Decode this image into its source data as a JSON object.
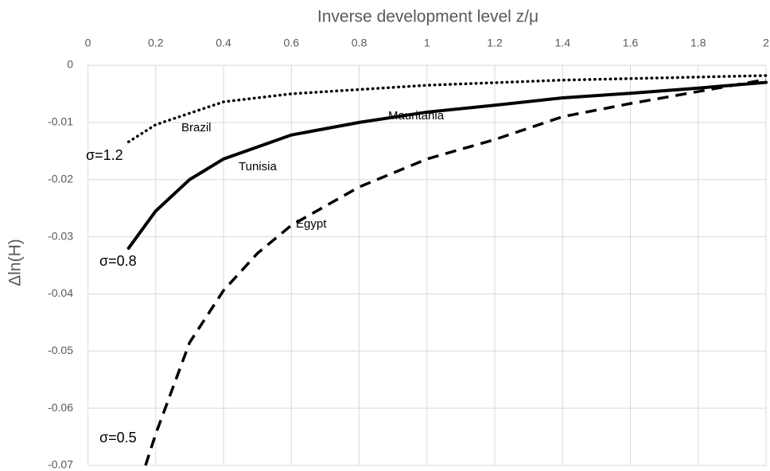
{
  "chart_data": {
    "type": "line",
    "x_axis_label": "Inverse development level z/μ",
    "y_axis_label": "Δln(H)",
    "xlim": [
      0,
      2
    ],
    "xticks": [
      0,
      0.2,
      0.4,
      0.6,
      0.8,
      1,
      1.2,
      1.4,
      1.6,
      1.8,
      2
    ],
    "ylim": [
      -0.07,
      0
    ],
    "yticks": [
      0,
      -0.01,
      -0.02,
      -0.03,
      -0.04,
      -0.05,
      -0.06,
      -0.07
    ],
    "grid": true,
    "series": [
      {
        "name": "σ=1.2",
        "color": "#000000",
        "style": "dotted",
        "x": [
          0.12,
          0.2,
          0.4,
          0.6,
          1.0,
          1.4,
          2.0
        ],
        "values": [
          -0.0134,
          -0.0104,
          -0.0064,
          -0.005,
          -0.0035,
          -0.0026,
          -0.0018
        ]
      },
      {
        "name": "σ=0.8",
        "color": "#000000",
        "style": "solid",
        "x": [
          0.12,
          0.2,
          0.3,
          0.4,
          0.6,
          0.8,
          1.0,
          1.2,
          1.4,
          1.6,
          1.8,
          2.0
        ],
        "values": [
          -0.032,
          -0.0255,
          -0.02,
          -0.0164,
          -0.0122,
          -0.01,
          -0.0082,
          -0.007,
          -0.0057,
          -0.0049,
          -0.004,
          -0.003
        ]
      },
      {
        "name": "σ=0.5",
        "color": "#000000",
        "style": "dashed",
        "x": [
          0.17,
          0.2,
          0.3,
          0.4,
          0.5,
          0.6,
          0.8,
          1.0,
          1.2,
          1.4,
          1.6,
          1.8,
          2.0
        ],
        "values": [
          -0.07,
          -0.0645,
          -0.0485,
          -0.0394,
          -0.0329,
          -0.028,
          -0.0213,
          -0.0164,
          -0.013,
          -0.009,
          -0.0067,
          -0.0046,
          -0.0025
        ]
      }
    ],
    "annotations": [
      "Brazil",
      "Tunisia",
      "Mauritania",
      "Egypt"
    ]
  }
}
